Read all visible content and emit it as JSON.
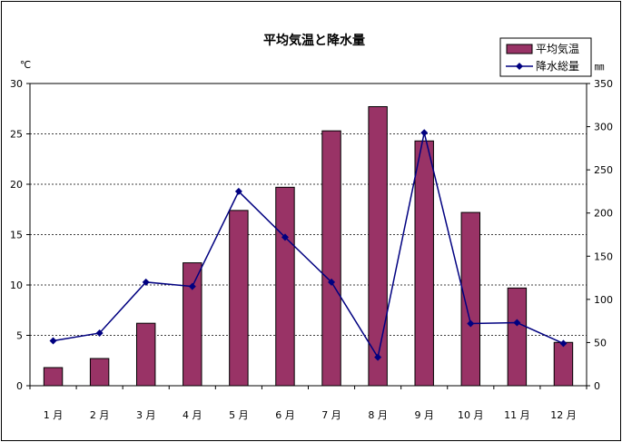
{
  "chart_data": {
    "type": "bar+line",
    "title": "平均気温と降水量",
    "categories": [
      "1 月",
      "2 月",
      "3 月",
      "4 月",
      "5 月",
      "6 月",
      "7 月",
      "8 月",
      "9 月",
      "10 月",
      "11 月",
      "12 月"
    ],
    "series": [
      {
        "name": "平均気温",
        "type": "bar",
        "axis": "left",
        "color": "#993366",
        "values": [
          1.8,
          2.7,
          6.2,
          12.2,
          17.4,
          19.7,
          25.3,
          27.7,
          24.3,
          17.2,
          9.7,
          4.3
        ]
      },
      {
        "name": "降水総量",
        "type": "line",
        "axis": "right",
        "color": "#000080",
        "values": [
          52,
          61,
          120,
          115,
          225,
          172,
          120,
          33,
          293,
          72,
          73,
          49
        ]
      }
    ],
    "y_left": {
      "unit": "℃",
      "ylim": [
        0,
        30
      ],
      "ticks": [
        "0",
        "5",
        "10",
        "15",
        "20",
        "25",
        "30"
      ]
    },
    "y_right": {
      "unit": "㎜",
      "ylim": [
        0,
        350
      ],
      "ticks": [
        "0",
        "50",
        "100",
        "150",
        "200",
        "250",
        "300",
        "350"
      ]
    },
    "grid": true,
    "legend_position": "top-right"
  }
}
